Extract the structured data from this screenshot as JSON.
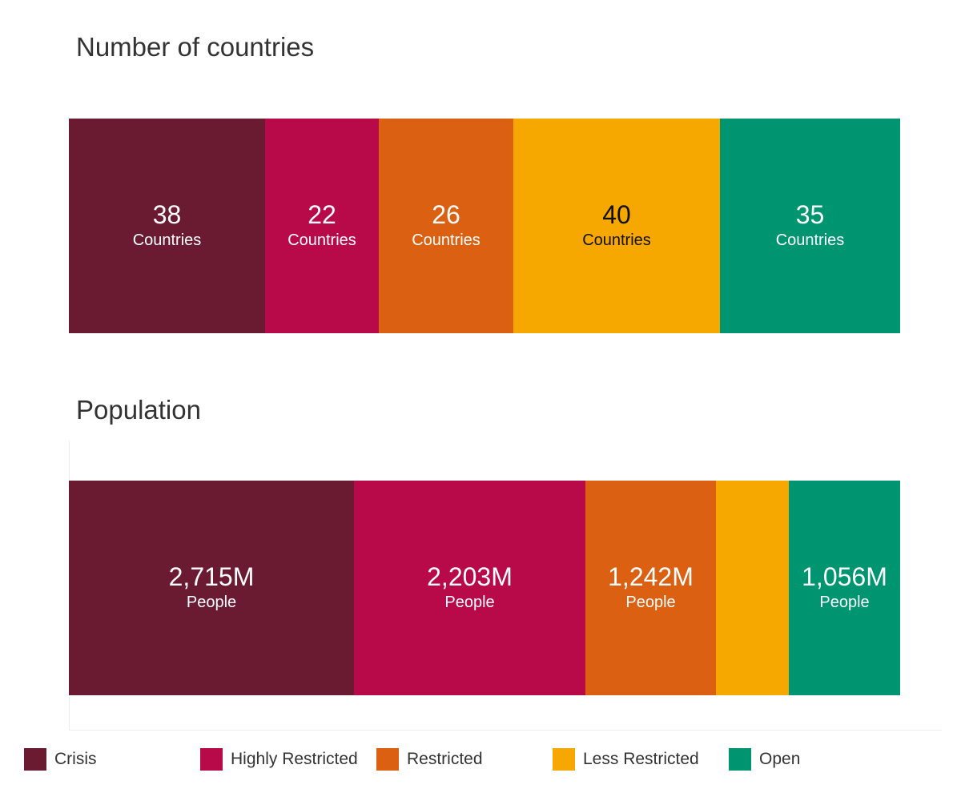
{
  "chart_data": [
    {
      "type": "bar",
      "stacked": true,
      "orientation": "horizontal",
      "title": "Number of countries",
      "categories": [
        "Crisis",
        "Highly Restricted",
        "Restricted",
        "Less Restricted",
        "Open"
      ],
      "values": [
        38,
        22,
        26,
        40,
        35
      ],
      "value_labels": [
        "38",
        "22",
        "26",
        "40",
        "35"
      ],
      "unit_label": "Countries"
    },
    {
      "type": "bar",
      "stacked": true,
      "orientation": "horizontal",
      "title": "Population",
      "categories": [
        "Crisis",
        "Highly Restricted",
        "Restricted",
        "Less Restricted",
        "Open"
      ],
      "values": [
        2715,
        2203,
        1242,
        690,
        1056
      ],
      "value_labels": [
        "2,715M",
        "2,203M",
        "1,242M",
        "",
        "1,056M"
      ],
      "unit_label": "People"
    }
  ],
  "legend": [
    {
      "label": "Crisis",
      "color": "#6a1b31"
    },
    {
      "label": "Highly Restricted",
      "color": "#b80a49"
    },
    {
      "label": "Restricted",
      "color": "#db6011"
    },
    {
      "label": "Less Restricted",
      "color": "#f6a800"
    },
    {
      "label": "Open",
      "color": "#009571"
    }
  ],
  "text_colors": [
    "#ffffff",
    "#ffffff",
    "#ffffff",
    "#111111",
    "#ffffff"
  ]
}
